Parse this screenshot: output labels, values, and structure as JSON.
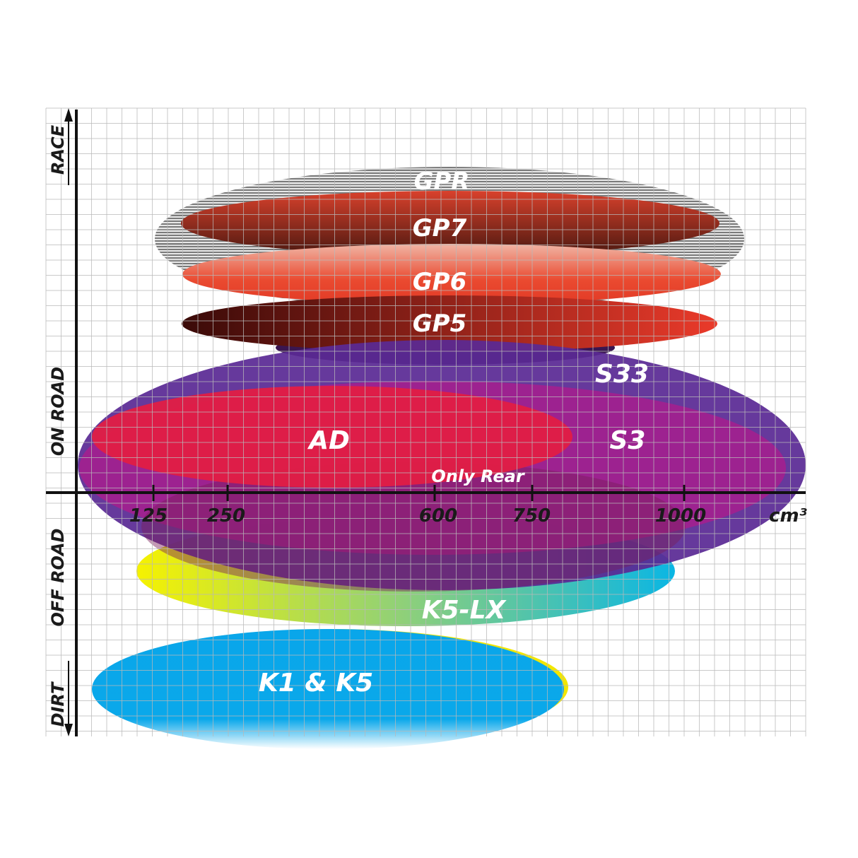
{
  "axes": {
    "y_labels": [
      "RACE",
      "ON ROAD",
      "OFF ROAD",
      "DIRT"
    ],
    "x_ticks": [
      "125",
      "250",
      "600",
      "750",
      "1000"
    ],
    "x_unit": "cm³"
  },
  "products": [
    {
      "name": "GPR",
      "color": "#9a9a9a"
    },
    {
      "name": "GP7",
      "color": "#c0392b"
    },
    {
      "name": "GP6",
      "color": "#e8432e"
    },
    {
      "name": "GP5",
      "color": "#a01818"
    },
    {
      "name": "S33",
      "color": "#5a2a94"
    },
    {
      "name": "S3",
      "color": "#a3208f"
    },
    {
      "name": "AD",
      "color": "#e21d45"
    },
    {
      "name": "Only Rear",
      "color": "#8a1f5a"
    },
    {
      "name": "K5-LX",
      "color": "#2ec4d8"
    },
    {
      "name": "K1 & K5",
      "color": "#0aa8ea"
    }
  ]
}
